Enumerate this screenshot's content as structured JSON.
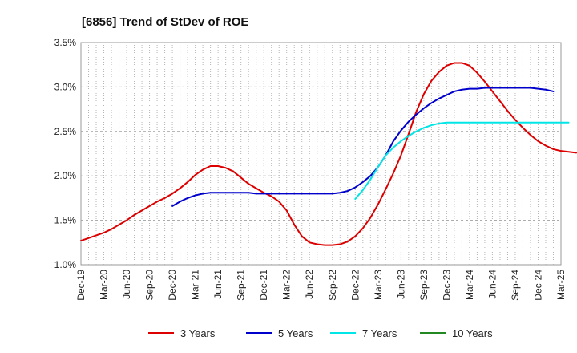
{
  "chart_data": {
    "type": "line",
    "title": "[6856]  Trend of StDev of ROE",
    "xlabel": "",
    "ylabel": "",
    "ylim": [
      1.0,
      3.5
    ],
    "y_ticks": [
      1.0,
      1.5,
      2.0,
      2.5,
      3.0,
      3.5
    ],
    "y_tick_labels": [
      "1.0%",
      "1.5%",
      "2.0%",
      "2.5%",
      "3.0%",
      "3.5%"
    ],
    "x_tick_labels": [
      "Dec-19",
      "Mar-20",
      "Jun-20",
      "Sep-20",
      "Dec-20",
      "Mar-21",
      "Jun-21",
      "Sep-21",
      "Dec-21",
      "Mar-22",
      "Jun-22",
      "Sep-22",
      "Dec-22",
      "Mar-23",
      "Jun-23",
      "Sep-23",
      "Dec-23",
      "Mar-24",
      "Jun-24",
      "Sep-24",
      "Dec-24",
      "Mar-25"
    ],
    "grid": true,
    "legend_position": "bottom",
    "series": [
      {
        "name": "3 Years",
        "color": "#dd0000",
        "start_month": 0,
        "values": [
          1.27,
          1.3,
          1.33,
          1.36,
          1.4,
          1.45,
          1.5,
          1.56,
          1.61,
          1.66,
          1.71,
          1.75,
          1.8,
          1.86,
          1.93,
          2.01,
          2.07,
          2.11,
          2.11,
          2.09,
          2.05,
          1.98,
          1.91,
          1.86,
          1.81,
          1.77,
          1.71,
          1.61,
          1.45,
          1.32,
          1.25,
          1.23,
          1.22,
          1.22,
          1.23,
          1.26,
          1.32,
          1.41,
          1.53,
          1.68,
          1.85,
          2.03,
          2.23,
          2.47,
          2.72,
          2.92,
          3.07,
          3.17,
          3.24,
          3.27,
          3.27,
          3.24,
          3.16,
          3.06,
          2.95,
          2.84,
          2.73,
          2.63,
          2.54,
          2.46,
          2.39,
          2.34,
          2.3,
          2.28,
          2.27,
          2.26
        ]
      },
      {
        "name": "5 Years",
        "color": "#0000cc",
        "start_month": 12,
        "values": [
          1.66,
          1.71,
          1.75,
          1.78,
          1.8,
          1.81,
          1.81,
          1.81,
          1.81,
          1.81,
          1.81,
          1.8,
          1.8,
          1.8,
          1.8,
          1.8,
          1.8,
          1.8,
          1.8,
          1.8,
          1.8,
          1.8,
          1.81,
          1.83,
          1.87,
          1.93,
          2.0,
          2.1,
          2.23,
          2.39,
          2.51,
          2.61,
          2.69,
          2.76,
          2.82,
          2.87,
          2.91,
          2.95,
          2.97,
          2.98,
          2.98,
          2.99,
          2.99,
          2.99,
          2.99,
          2.99,
          2.99,
          2.99,
          2.98,
          2.97,
          2.95
        ]
      },
      {
        "name": "7 Years",
        "color": "#00e5e5",
        "start_month": 36,
        "values": [
          1.74,
          1.84,
          1.96,
          2.1,
          2.23,
          2.32,
          2.39,
          2.45,
          2.5,
          2.54,
          2.57,
          2.59,
          2.6,
          2.6,
          2.6,
          2.6,
          2.6,
          2.6,
          2.6,
          2.6,
          2.6,
          2.6,
          2.6,
          2.6,
          2.6,
          2.6,
          2.6,
          2.6,
          2.6
        ]
      },
      {
        "name": "10 Years",
        "color": "#228822",
        "start_month": 0,
        "values": []
      }
    ]
  }
}
